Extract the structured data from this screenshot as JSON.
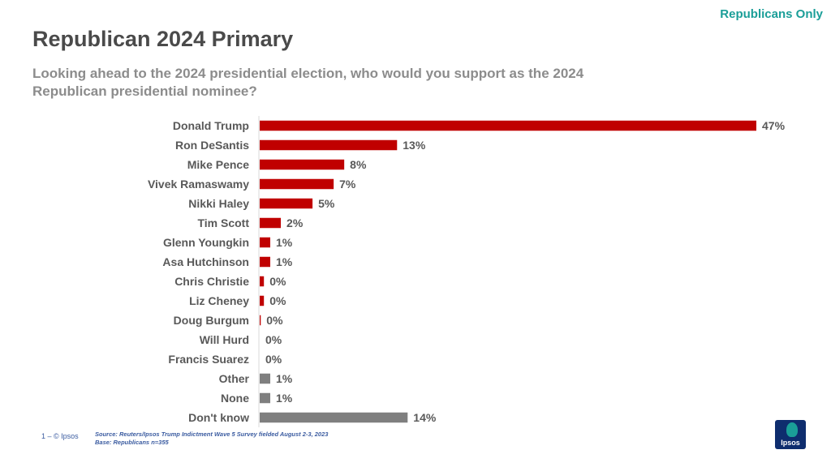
{
  "header": {
    "tag": "Republicans Only",
    "title": "Republican 2024 Primary",
    "question": "Looking ahead to the 2024 presidential election, who would you support as the 2024 Republican presidential nominee?"
  },
  "footer": {
    "page": "1 –  © Ipsos",
    "source_line1": "Source: Reuters/Ipsos Trump Indictment Wave 5 Survey fielded August 2-3, 2023",
    "source_line2": "Base: Republicans n=355",
    "logo_text": "Ipsos"
  },
  "colors": {
    "candidate": "#c00000",
    "other": "#7f7f7f",
    "label": "#595959",
    "tag": "#1a9e98"
  },
  "chart_data": {
    "type": "bar",
    "orientation": "horizontal",
    "categories": [
      "Donald Trump",
      "Ron DeSantis",
      "Mike Pence",
      "Vivek Ramaswamy",
      "Nikki Haley",
      "Tim Scott",
      "Glenn Youngkin",
      "Asa Hutchinson",
      "Chris Christie",
      "Liz Cheney",
      "Doug Burgum",
      "Will Hurd",
      "Francis Suarez",
      "Other",
      "None",
      "Don't know"
    ],
    "values": [
      47,
      13,
      8,
      7,
      5,
      2,
      1,
      1,
      0.4,
      0.4,
      0.1,
      0,
      0,
      1,
      1,
      14
    ],
    "value_labels": [
      "47%",
      "13%",
      "8%",
      "7%",
      "5%",
      "2%",
      "1%",
      "1%",
      "0%",
      "0%",
      "0%",
      "0%",
      "0%",
      "1%",
      "1%",
      "14%"
    ],
    "bar_colors": [
      "#c00000",
      "#c00000",
      "#c00000",
      "#c00000",
      "#c00000",
      "#c00000",
      "#c00000",
      "#c00000",
      "#c00000",
      "#c00000",
      "#c00000",
      "#c00000",
      "#c00000",
      "#7f7f7f",
      "#7f7f7f",
      "#7f7f7f"
    ],
    "xlim": [
      0,
      47
    ],
    "grid": false,
    "legend": "none"
  }
}
